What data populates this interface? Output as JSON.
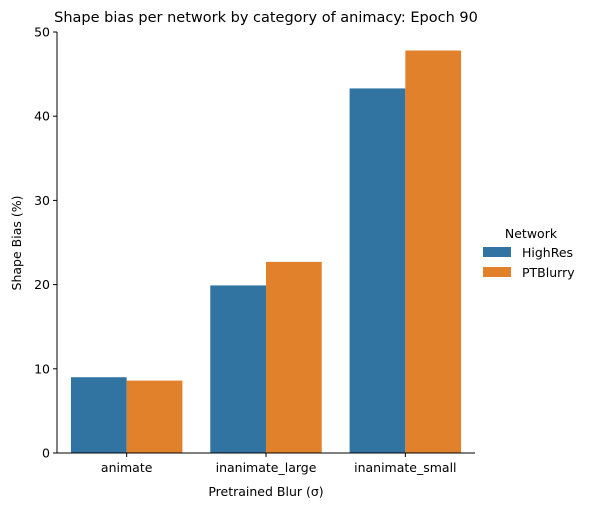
{
  "chart_data": {
    "type": "bar",
    "title": "Shape bias per network by category of animacy: Epoch 90",
    "xlabel": "Pretrained Blur (σ)",
    "ylabel": "Shape Bias (%)",
    "categories": [
      "animate",
      "inanimate_large",
      "inanimate_small"
    ],
    "series": [
      {
        "name": "HighRes",
        "color": "#3274a1",
        "values": [
          9.0,
          19.9,
          43.3
        ]
      },
      {
        "name": "PTBlurry",
        "color": "#e1812c",
        "values": [
          8.6,
          22.7,
          47.8
        ]
      }
    ],
    "ylim": [
      0,
      50
    ],
    "yticks": [
      0,
      10,
      20,
      30,
      40,
      50
    ],
    "grid": false,
    "legend": {
      "title": "Network",
      "placement": "right"
    }
  }
}
